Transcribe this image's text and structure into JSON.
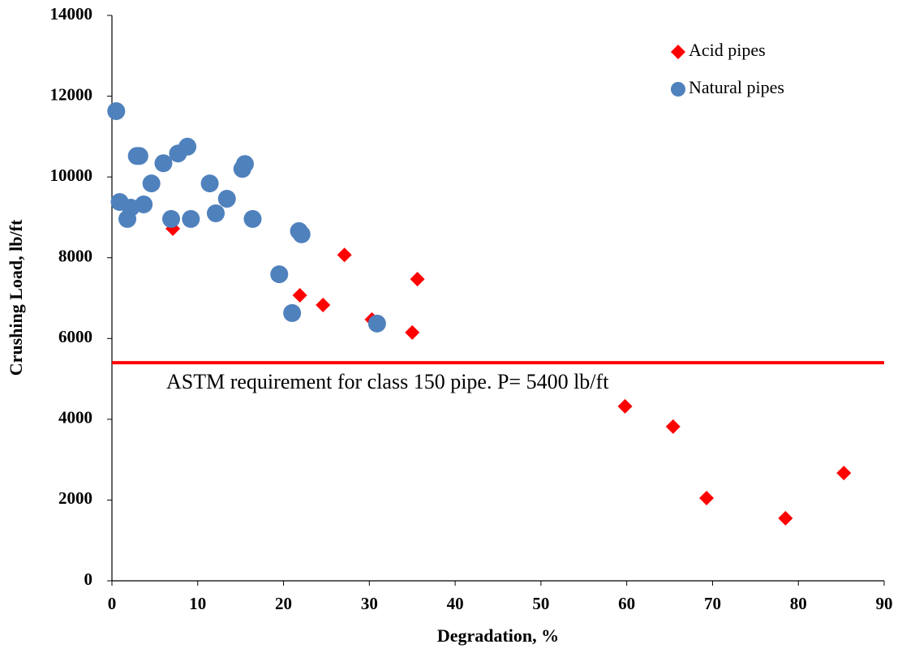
{
  "chart_data": {
    "type": "scatter",
    "x_label": "Degradation, %",
    "y_label": "Crushing Load, lb/ft",
    "xlim": [
      0,
      90
    ],
    "xticks": [
      0,
      10,
      20,
      30,
      40,
      50,
      60,
      70,
      80,
      90
    ],
    "ylim": [
      0,
      14000
    ],
    "yticks": [
      0,
      2000,
      4000,
      6000,
      8000,
      10000,
      12000,
      14000
    ],
    "legend_position": "upper right",
    "reference_line": {
      "value": 5400,
      "color": "#ff0000",
      "label": "ASTM requirement for class 150 pipe. P= 5400 lb/ft"
    },
    "series": [
      {
        "name": "Acid pipes",
        "color": "#ff0000",
        "marker": "diamond",
        "x": [
          7.1,
          21.9,
          24.6,
          27.1,
          30.3,
          35.0,
          35.6,
          59.8,
          65.4,
          69.3,
          78.5,
          85.3
        ],
        "values": [
          8720,
          7070,
          6830,
          8070,
          6470,
          6150,
          7470,
          4320,
          3820,
          2050,
          1550,
          2670
        ]
      },
      {
        "name": "Natural pipes",
        "color": "#4f81bd",
        "marker": "circle",
        "x": [
          0.5,
          0.9,
          2.2,
          1.8,
          2.9,
          3.2,
          3.7,
          4.6,
          6.0,
          6.9,
          7.7,
          8.8,
          9.2,
          11.4,
          12.1,
          13.4,
          15.2,
          15.5,
          16.4,
          19.5,
          21.8,
          22.1,
          21.0,
          30.9
        ],
        "values": [
          11630,
          9380,
          9240,
          8960,
          10520,
          10520,
          9320,
          9840,
          10340,
          8960,
          10580,
          10750,
          8960,
          9840,
          9100,
          9460,
          10200,
          10320,
          8960,
          7590,
          8660,
          8580,
          6630,
          6370
        ]
      }
    ]
  }
}
